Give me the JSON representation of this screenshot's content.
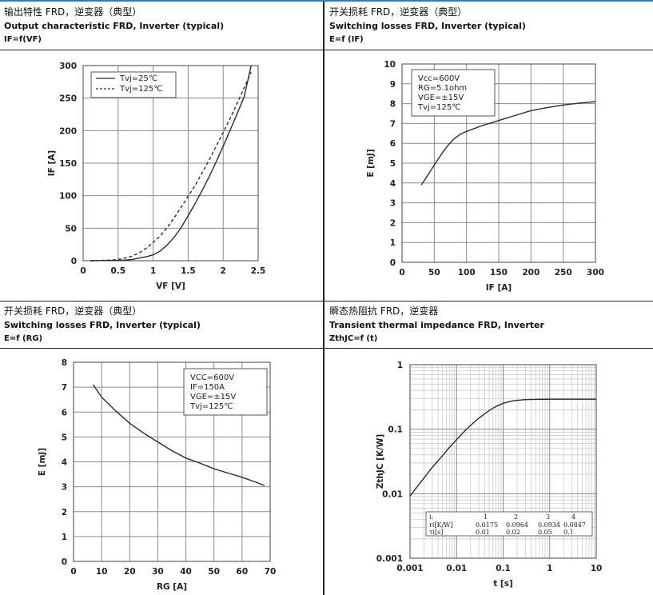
{
  "panels": [
    {
      "header": {
        "line1": "输出特性 FRD，逆变器（典型）",
        "line2": "Output characteristic FRD, Inverter (typical)",
        "line3": "IF=f(VF)"
      },
      "chart_data": {
        "type": "line",
        "xlabel": "VF  [V]",
        "ylabel": "IF  [A]",
        "xlim": [
          0,
          2.5
        ],
        "ylim": [
          0,
          300
        ],
        "xticks": [
          0,
          0.5,
          1,
          1.5,
          2,
          2.5
        ],
        "yticks": [
          0,
          50,
          100,
          150,
          200,
          250,
          300
        ],
        "grid": true,
        "legend": {
          "placement": "top-left",
          "entries": [
            "Tvj=25℃",
            "Tvj=125℃"
          ]
        },
        "series": [
          {
            "name": "Tvj=25℃",
            "style": "solid",
            "x": [
              0.1,
              0.5,
              0.6,
              0.7,
              0.8,
              0.9,
              1.0,
              1.1,
              1.2,
              1.3,
              1.4,
              1.5,
              1.6,
              1.7,
              1.8,
              1.9,
              2.0,
              2.1,
              2.2,
              2.3,
              2.4
            ],
            "y": [
              0,
              0.5,
              1,
              2,
              4,
              6,
              9,
              15,
              24,
              36,
              51,
              69,
              88,
              108,
              129,
              152,
              176,
              201,
              226,
              252,
              300
            ]
          },
          {
            "name": "Tvj=125℃",
            "style": "dashed",
            "x": [
              0.1,
              0.4,
              0.5,
              0.6,
              0.7,
              0.8,
              0.9,
              1.0,
              1.1,
              1.2,
              1.3,
              1.4,
              1.5,
              1.6,
              1.7,
              1.8,
              1.9,
              2.0,
              2.1,
              2.2,
              2.3,
              2.4
            ],
            "y": [
              0,
              1,
              2,
              4,
              7,
              12,
              19,
              28,
              38,
              51,
              66,
              82,
              99,
              116,
              135,
              155,
              176,
              197,
              219,
              242,
              266,
              290
            ]
          }
        ]
      }
    },
    {
      "header": {
        "line1": "开关损耗 FRD，逆变器（典型）",
        "line2": "Switching losses FRD, Inverter (typical)",
        "line3": "E=f (IF)"
      },
      "chart_data": {
        "type": "line",
        "xlabel": "IF  [A]",
        "ylabel": "E  [mJ]",
        "xlim": [
          0,
          300
        ],
        "ylim": [
          0,
          10
        ],
        "xticks": [
          0,
          50,
          100,
          150,
          200,
          250,
          300
        ],
        "yticks": [
          0,
          1,
          2,
          3,
          4,
          5,
          6,
          7,
          8,
          9,
          10
        ],
        "grid": true,
        "annotation": [
          "Vcc=600V",
          "RG=5.1ohm",
          "VGE=±15V",
          "Tvj=125℃"
        ],
        "series": [
          {
            "name": "",
            "style": "solid",
            "x": [
              30,
              40,
              50,
              60,
              70,
              80,
              90,
              100,
              125,
              150,
              175,
              200,
              225,
              250,
              275,
              300
            ],
            "y": [
              3.9,
              4.4,
              4.9,
              5.4,
              5.85,
              6.2,
              6.45,
              6.6,
              6.9,
              7.15,
              7.4,
              7.65,
              7.8,
              7.93,
              8.03,
              8.1
            ]
          }
        ]
      }
    },
    {
      "header": {
        "line1": "开关损耗 FRD，逆变器（典型）",
        "line2": "Switching losses FRD, Inverter (typical)",
        "line3": "E=f (RG)"
      },
      "chart_data": {
        "type": "line",
        "xlabel": "RG  [A]",
        "ylabel": "E  [mJ]",
        "xlim": [
          0,
          70
        ],
        "ylim": [
          0,
          8
        ],
        "xticks": [
          0,
          10,
          20,
          30,
          40,
          50,
          60,
          70
        ],
        "yticks": [
          0,
          1,
          2,
          3,
          4,
          5,
          6,
          7,
          8
        ],
        "grid": true,
        "annotation": [
          "VCC=600V",
          "IF=150A",
          "VGE=±15V",
          "Tvj=125℃"
        ],
        "series": [
          {
            "name": "",
            "style": "solid",
            "x": [
              7,
              10,
              15,
              20,
              25,
              30,
              35,
              40,
              45,
              50,
              55,
              60,
              65,
              68
            ],
            "y": [
              7.1,
              6.6,
              6.05,
              5.55,
              5.15,
              4.8,
              4.45,
              4.15,
              3.95,
              3.72,
              3.55,
              3.38,
              3.18,
              3.05
            ]
          }
        ]
      }
    },
    {
      "header": {
        "line1": "瞬态热阻抗 FRD，逆变器",
        "line2": "Transient thermal impedance FRD, Inverter",
        "line3": "ZthJC=f (t)"
      },
      "chart_data": {
        "type": "line",
        "xlabel": "t  [s]",
        "ylabel": "ZthJC  [K/W]",
        "xscale": "log",
        "yscale": "log",
        "xlim": [
          0.001,
          10
        ],
        "ylim": [
          0.001,
          1
        ],
        "xticks": [
          "0.001",
          "0.01",
          "0.1",
          "1",
          "10"
        ],
        "yticks": [
          "0.001",
          "0.01",
          "0.1",
          "1"
        ],
        "grid": true,
        "table": {
          "header": [
            "i:",
            "1",
            "2",
            "3",
            "4"
          ],
          "rows": [
            [
              "ri[K/W]",
              "0.0175",
              "0.0964",
              "0.0934",
              "0.0847"
            ],
            [
              "τi[s]",
              "0.01",
              "0.02",
              "0.05",
              "0.1"
            ]
          ]
        },
        "series": [
          {
            "name": "",
            "style": "solid",
            "x": [
              0.001,
              0.0015,
              0.002,
              0.003,
              0.005,
              0.007,
              0.01,
              0.015,
              0.02,
              0.03,
              0.05,
              0.07,
              0.1,
              0.15,
              0.2,
              0.3,
              0.5,
              1,
              2,
              5,
              10
            ],
            "y": [
              0.0092,
              0.0135,
              0.0175,
              0.0255,
              0.039,
              0.052,
              0.069,
              0.094,
              0.115,
              0.148,
              0.195,
              0.225,
              0.252,
              0.272,
              0.28,
              0.287,
              0.29,
              0.291,
              0.291,
              0.291,
              0.291
            ]
          }
        ]
      }
    }
  ]
}
